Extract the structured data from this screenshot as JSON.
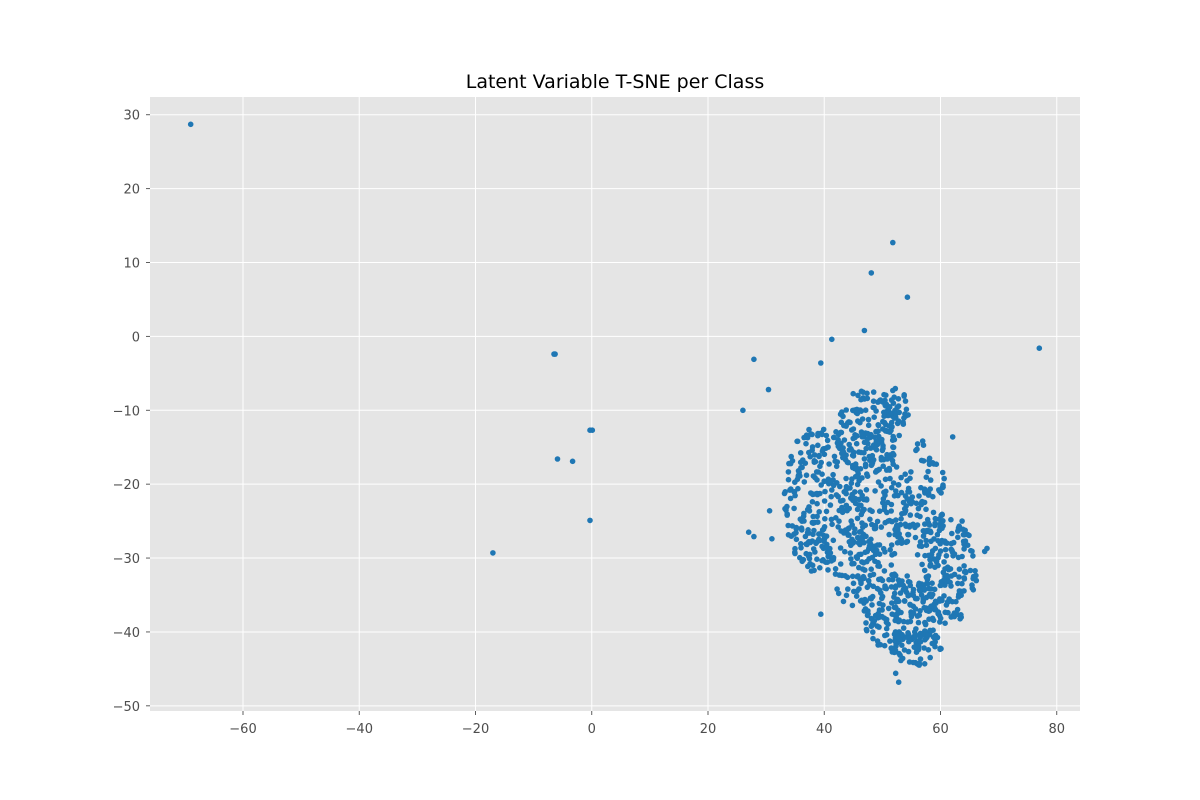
{
  "chart_data": {
    "type": "scatter",
    "title": "Latent Variable T-SNE per Class",
    "xlabel": "",
    "ylabel": "",
    "xlim": [
      -76,
      84
    ],
    "ylim": [
      -50.7,
      32.4
    ],
    "xticks": [
      -60,
      -40,
      -20,
      0,
      20,
      40,
      60,
      80
    ],
    "yticks": [
      -50,
      -40,
      -30,
      -20,
      -10,
      0,
      10,
      20,
      30
    ],
    "xtick_labels": [
      "−60",
      "−40",
      "−20",
      "0",
      "20",
      "40",
      "60",
      "80"
    ],
    "ytick_labels": [
      "−50",
      "−40",
      "−30",
      "−20",
      "−10",
      "0",
      "10",
      "20",
      "30"
    ],
    "grid": true,
    "background": "#e5e5e5",
    "marker_color": "#1f77b4",
    "series": [
      {
        "outliers": [
          [
            -69.0,
            28.7
          ],
          [
            -6.5,
            -2.4
          ],
          [
            -6.3,
            -2.4
          ],
          [
            -0.3,
            -12.7
          ],
          [
            0.1,
            -12.7
          ],
          [
            -5.9,
            -16.6
          ],
          [
            -3.3,
            -16.9
          ],
          [
            -0.3,
            -24.9
          ],
          [
            -17.0,
            -29.3
          ],
          [
            26.0,
            -10.0
          ],
          [
            27.9,
            -3.1
          ],
          [
            30.4,
            -7.2
          ],
          [
            39.4,
            -3.6
          ],
          [
            41.3,
            -0.4
          ],
          [
            46.9,
            0.8
          ],
          [
            48.1,
            8.6
          ],
          [
            51.8,
            12.7
          ],
          [
            54.3,
            5.3
          ],
          [
            77.0,
            -1.6
          ],
          [
            30.6,
            -23.6
          ],
          [
            27.0,
            -26.5
          ],
          [
            27.9,
            -27.1
          ],
          [
            31.0,
            -27.4
          ],
          [
            39.4,
            -37.6
          ],
          [
            52.8,
            -46.8
          ],
          [
            52.3,
            -45.6
          ],
          [
            62.1,
            -13.6
          ],
          [
            68.0,
            -28.7
          ],
          [
            67.6,
            -29.1
          ]
        ],
        "clusters": [
          {
            "cx": 39.0,
            "cy": -22.0,
            "rx": 6.0,
            "ry": 10.0,
            "n": 240
          },
          {
            "cx": 47.5,
            "cy": -13.0,
            "rx": 5.5,
            "ry": 6.0,
            "n": 160
          },
          {
            "cx": 49.5,
            "cy": -24.0,
            "rx": 6.0,
            "ry": 8.0,
            "n": 170
          },
          {
            "cx": 57.0,
            "cy": -22.0,
            "rx": 4.0,
            "ry": 8.0,
            "n": 80
          },
          {
            "cx": 61.0,
            "cy": -31.5,
            "rx": 5.5,
            "ry": 7.5,
            "n": 170
          },
          {
            "cx": 53.0,
            "cy": -37.5,
            "rx": 6.5,
            "ry": 5.5,
            "n": 190
          },
          {
            "cx": 56.0,
            "cy": -42.0,
            "rx": 4.5,
            "ry": 2.5,
            "n": 60
          },
          {
            "cx": 45.5,
            "cy": -31.5,
            "rx": 4.5,
            "ry": 5.0,
            "n": 70
          },
          {
            "cx": 52.0,
            "cy": -10.0,
            "rx": 2.5,
            "ry": 3.0,
            "n": 35
          }
        ]
      }
    ]
  }
}
